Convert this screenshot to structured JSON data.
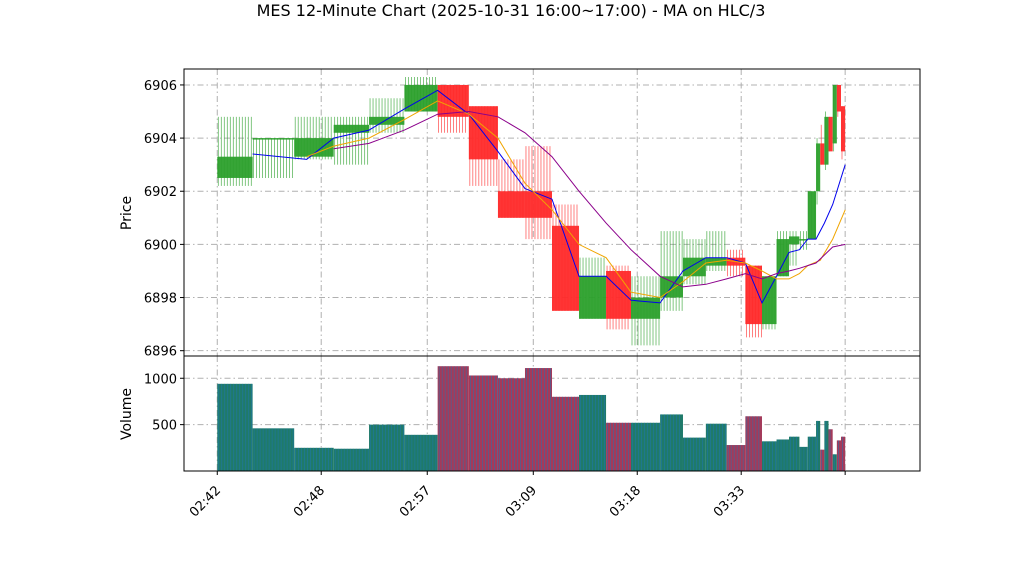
{
  "colors": {
    "up": "#2ca02c",
    "down": "#ff2a2a",
    "volume_up": "#1f7a6a",
    "volume_down": "#a33a5a",
    "volume_edge": "#1f77b4",
    "ma_fast": "#0000ee",
    "ma_mid": "#f0a500",
    "ma_slow": "#8b008b",
    "grid": "#b0b0b0"
  },
  "chart_data": {
    "type": "candlestick",
    "title": "MES 12-Minute Chart (2025-10-31 16:00~17:00) - MA on HLC/3",
    "grid": true,
    "price_panel": {
      "ylabel": "Price",
      "ylim": [
        6895.8,
        6906.6
      ],
      "yticks": [
        6896,
        6898,
        6900,
        6902,
        6904,
        6906
      ]
    },
    "volume_panel": {
      "ylabel": "Volume",
      "ylim": [
        0,
        1240
      ],
      "yticks": [
        500,
        1000
      ]
    },
    "xlim": [
      2.0,
      37.4
    ],
    "xticks": [
      {
        "x": 3.6,
        "label": "02:42"
      },
      {
        "x": 8.6,
        "label": "02:48"
      },
      {
        "x": 13.7,
        "label": "02:57"
      },
      {
        "x": 18.8,
        "label": "03:09"
      },
      {
        "x": 23.8,
        "label": "03:18"
      },
      {
        "x": 28.8,
        "label": "03:33"
      },
      {
        "x": 33.8,
        "label": ""
      }
    ],
    "bars": [
      {
        "x0": 3.6,
        "x1": 5.3,
        "open": 6902.5,
        "high": 6904.8,
        "low": 6902.2,
        "close": 6903.3,
        "volume": 940
      },
      {
        "x0": 5.3,
        "x1": 7.3,
        "open": 6904.0,
        "high": 6904.0,
        "low": 6902.5,
        "close": 6904.0,
        "volume": 460
      },
      {
        "x0": 7.3,
        "x1": 9.2,
        "open": 6903.3,
        "high": 6904.8,
        "low": 6903.2,
        "close": 6904.0,
        "volume": 250
      },
      {
        "x0": 9.2,
        "x1": 10.9,
        "open": 6904.2,
        "high": 6904.8,
        "low": 6903.0,
        "close": 6904.5,
        "volume": 240
      },
      {
        "x0": 10.9,
        "x1": 12.6,
        "open": 6904.5,
        "high": 6905.5,
        "low": 6904.2,
        "close": 6904.8,
        "volume": 500
      },
      {
        "x0": 12.6,
        "x1": 14.2,
        "open": 6905.0,
        "high": 6906.3,
        "low": 6905.0,
        "close": 6906.0,
        "volume": 390
      },
      {
        "x0": 14.2,
        "x1": 15.7,
        "open": 6906.0,
        "high": 6906.0,
        "low": 6904.2,
        "close": 6904.8,
        "volume": 1130
      },
      {
        "x0": 15.7,
        "x1": 17.1,
        "open": 6905.2,
        "high": 6905.2,
        "low": 6902.2,
        "close": 6903.2,
        "volume": 1030
      },
      {
        "x0": 17.1,
        "x1": 18.4,
        "open": 6902.0,
        "high": 6903.2,
        "low": 6901.0,
        "close": 6901.0,
        "volume": 1000
      },
      {
        "x0": 18.4,
        "x1": 19.7,
        "open": 6902.0,
        "high": 6903.7,
        "low": 6900.2,
        "close": 6901.0,
        "volume": 1110
      },
      {
        "x0": 19.7,
        "x1": 21.0,
        "open": 6900.7,
        "high": 6901.5,
        "low": 6897.5,
        "close": 6897.5,
        "volume": 800
      },
      {
        "x0": 21.0,
        "x1": 22.3,
        "open": 6897.2,
        "high": 6899.5,
        "low": 6897.2,
        "close": 6898.8,
        "volume": 820
      },
      {
        "x0": 22.3,
        "x1": 23.5,
        "open": 6899.0,
        "high": 6899.2,
        "low": 6896.8,
        "close": 6897.2,
        "volume": 520
      },
      {
        "x0": 23.5,
        "x1": 24.9,
        "open": 6897.2,
        "high": 6898.8,
        "low": 6896.2,
        "close": 6898.0,
        "volume": 520
      },
      {
        "x0": 24.9,
        "x1": 26.0,
        "open": 6898.0,
        "high": 6900.5,
        "low": 6897.5,
        "close": 6898.8,
        "volume": 610
      },
      {
        "x0": 26.0,
        "x1": 27.1,
        "open": 6898.8,
        "high": 6900.2,
        "low": 6898.5,
        "close": 6899.5,
        "volume": 360
      },
      {
        "x0": 27.1,
        "x1": 28.1,
        "open": 6899.2,
        "high": 6900.5,
        "low": 6899.0,
        "close": 6899.5,
        "volume": 510
      },
      {
        "x0": 28.1,
        "x1": 29.0,
        "open": 6899.5,
        "high": 6899.8,
        "low": 6898.8,
        "close": 6899.2,
        "volume": 280
      },
      {
        "x0": 29.0,
        "x1": 29.8,
        "open": 6899.2,
        "high": 6899.2,
        "low": 6896.5,
        "close": 6897.0,
        "volume": 590
      },
      {
        "x0": 29.8,
        "x1": 30.5,
        "open": 6897.0,
        "high": 6898.8,
        "low": 6896.8,
        "close": 6898.8,
        "volume": 320
      },
      {
        "x0": 30.5,
        "x1": 31.1,
        "open": 6898.8,
        "high": 6900.5,
        "low": 6898.8,
        "close": 6900.2,
        "volume": 340
      },
      {
        "x0": 31.1,
        "x1": 31.6,
        "open": 6900.0,
        "high": 6900.5,
        "low": 6899.2,
        "close": 6900.3,
        "volume": 370
      },
      {
        "x0": 31.6,
        "x1": 32.0,
        "open": 6900.2,
        "high": 6900.5,
        "low": 6899.8,
        "close": 6900.2,
        "volume": 260
      },
      {
        "x0": 32.0,
        "x1": 32.4,
        "open": 6900.2,
        "high": 6902.0,
        "low": 6900.2,
        "close": 6902.0,
        "volume": 370
      },
      {
        "x0": 32.4,
        "x1": 32.6,
        "open": 6902.0,
        "high": 6904.0,
        "low": 6901.5,
        "close": 6903.8,
        "volume": 540
      },
      {
        "x0": 32.6,
        "x1": 32.8,
        "open": 6903.8,
        "high": 6904.5,
        "low": 6903.0,
        "close": 6903.0,
        "volume": 230
      },
      {
        "x0": 32.8,
        "x1": 33.0,
        "open": 6903.0,
        "high": 6905.0,
        "low": 6902.8,
        "close": 6904.8,
        "volume": 540
      },
      {
        "x0": 33.0,
        "x1": 33.2,
        "open": 6904.8,
        "high": 6904.8,
        "low": 6903.5,
        "close": 6903.5,
        "volume": 450
      },
      {
        "x0": 33.2,
        "x1": 33.4,
        "open": 6903.8,
        "high": 6906.0,
        "low": 6903.5,
        "close": 6906.0,
        "volume": 180
      },
      {
        "x0": 33.4,
        "x1": 33.6,
        "open": 6906.0,
        "high": 6906.0,
        "low": 6904.8,
        "close": 6905.0,
        "volume": 330
      },
      {
        "x0": 33.6,
        "x1": 33.8,
        "open": 6905.2,
        "high": 6905.2,
        "low": 6903.2,
        "close": 6903.5,
        "volume": 370
      }
    ],
    "series": [
      {
        "color_key": "ma_fast",
        "x": [
          5.3,
          7.9,
          9.2,
          10.9,
          12.6,
          14.2,
          15.7,
          17.1,
          18.4,
          19.7,
          21.0,
          22.3,
          23.5,
          24.9,
          26.0,
          27.1,
          28.1,
          29.0,
          29.8,
          30.5,
          31.1,
          31.6,
          32.0,
          32.4,
          32.8,
          33.2,
          33.8
        ],
        "y": [
          6903.4,
          6903.2,
          6904.0,
          6904.3,
          6905.1,
          6905.8,
          6904.9,
          6903.5,
          6902.1,
          6901.7,
          6898.8,
          6898.8,
          6897.9,
          6897.8,
          6899.0,
          6899.5,
          6899.5,
          6899.3,
          6897.8,
          6898.8,
          6899.7,
          6899.8,
          6900.2,
          6900.2,
          6900.8,
          6901.5,
          6903.0
        ]
      },
      {
        "color_key": "ma_mid",
        "x": [
          7.9,
          9.2,
          10.9,
          12.6,
          14.2,
          15.7,
          17.1,
          18.4,
          19.7,
          21.0,
          22.3,
          23.5,
          24.9,
          26.0,
          27.1,
          28.1,
          29.0,
          29.8,
          30.5,
          31.1,
          31.6,
          32.0,
          32.6,
          33.2,
          33.8
        ],
        "y": [
          6903.3,
          6903.7,
          6904.0,
          6904.7,
          6905.4,
          6904.9,
          6904.0,
          6902.3,
          6901.3,
          6900.0,
          6899.5,
          6898.2,
          6898.0,
          6898.6,
          6899.3,
          6899.4,
          6899.3,
          6899.0,
          6898.7,
          6898.7,
          6898.9,
          6899.2,
          6899.4,
          6900.2,
          6901.3
        ]
      },
      {
        "color_key": "ma_slow",
        "x": [
          9.2,
          10.9,
          12.6,
          14.2,
          15.7,
          17.1,
          18.4,
          19.7,
          21.0,
          22.3,
          23.5,
          24.9,
          26.0,
          27.1,
          28.1,
          29.0,
          29.8,
          30.5,
          31.1,
          31.6,
          32.0,
          32.4,
          32.8,
          33.2,
          33.8
        ],
        "y": [
          6903.6,
          6903.8,
          6904.3,
          6904.9,
          6905.0,
          6904.8,
          6904.2,
          6903.3,
          6902.0,
          6900.8,
          6899.8,
          6898.8,
          6898.4,
          6898.5,
          6898.7,
          6898.9,
          6898.7,
          6898.9,
          6899.0,
          6899.1,
          6899.2,
          6899.3,
          6899.6,
          6899.9,
          6900.0
        ]
      }
    ]
  }
}
